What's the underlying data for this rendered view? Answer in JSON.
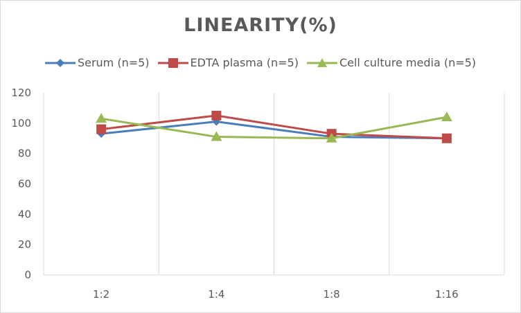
{
  "chart_data": {
    "type": "line",
    "title": "LINEARITY(%)",
    "categories": [
      "1:2",
      "1:4",
      "1:8",
      "1:16"
    ],
    "ylim": [
      0,
      120
    ],
    "yticks": [
      0,
      20,
      40,
      60,
      80,
      100,
      120
    ],
    "grid": "vertical category gridlines",
    "legend": "top",
    "series": [
      {
        "name": "Serum (n=5)",
        "values": [
          93,
          101,
          91,
          90
        ],
        "color": "#4a7ebb",
        "marker": "diamond"
      },
      {
        "name": "EDTA plasma (n=5)",
        "values": [
          96,
          105,
          93,
          90
        ],
        "color": "#be4b48",
        "marker": "square"
      },
      {
        "name": "Cell culture media (n=5)",
        "values": [
          103,
          91,
          90,
          104
        ],
        "color": "#98b954",
        "marker": "triangle"
      }
    ]
  }
}
